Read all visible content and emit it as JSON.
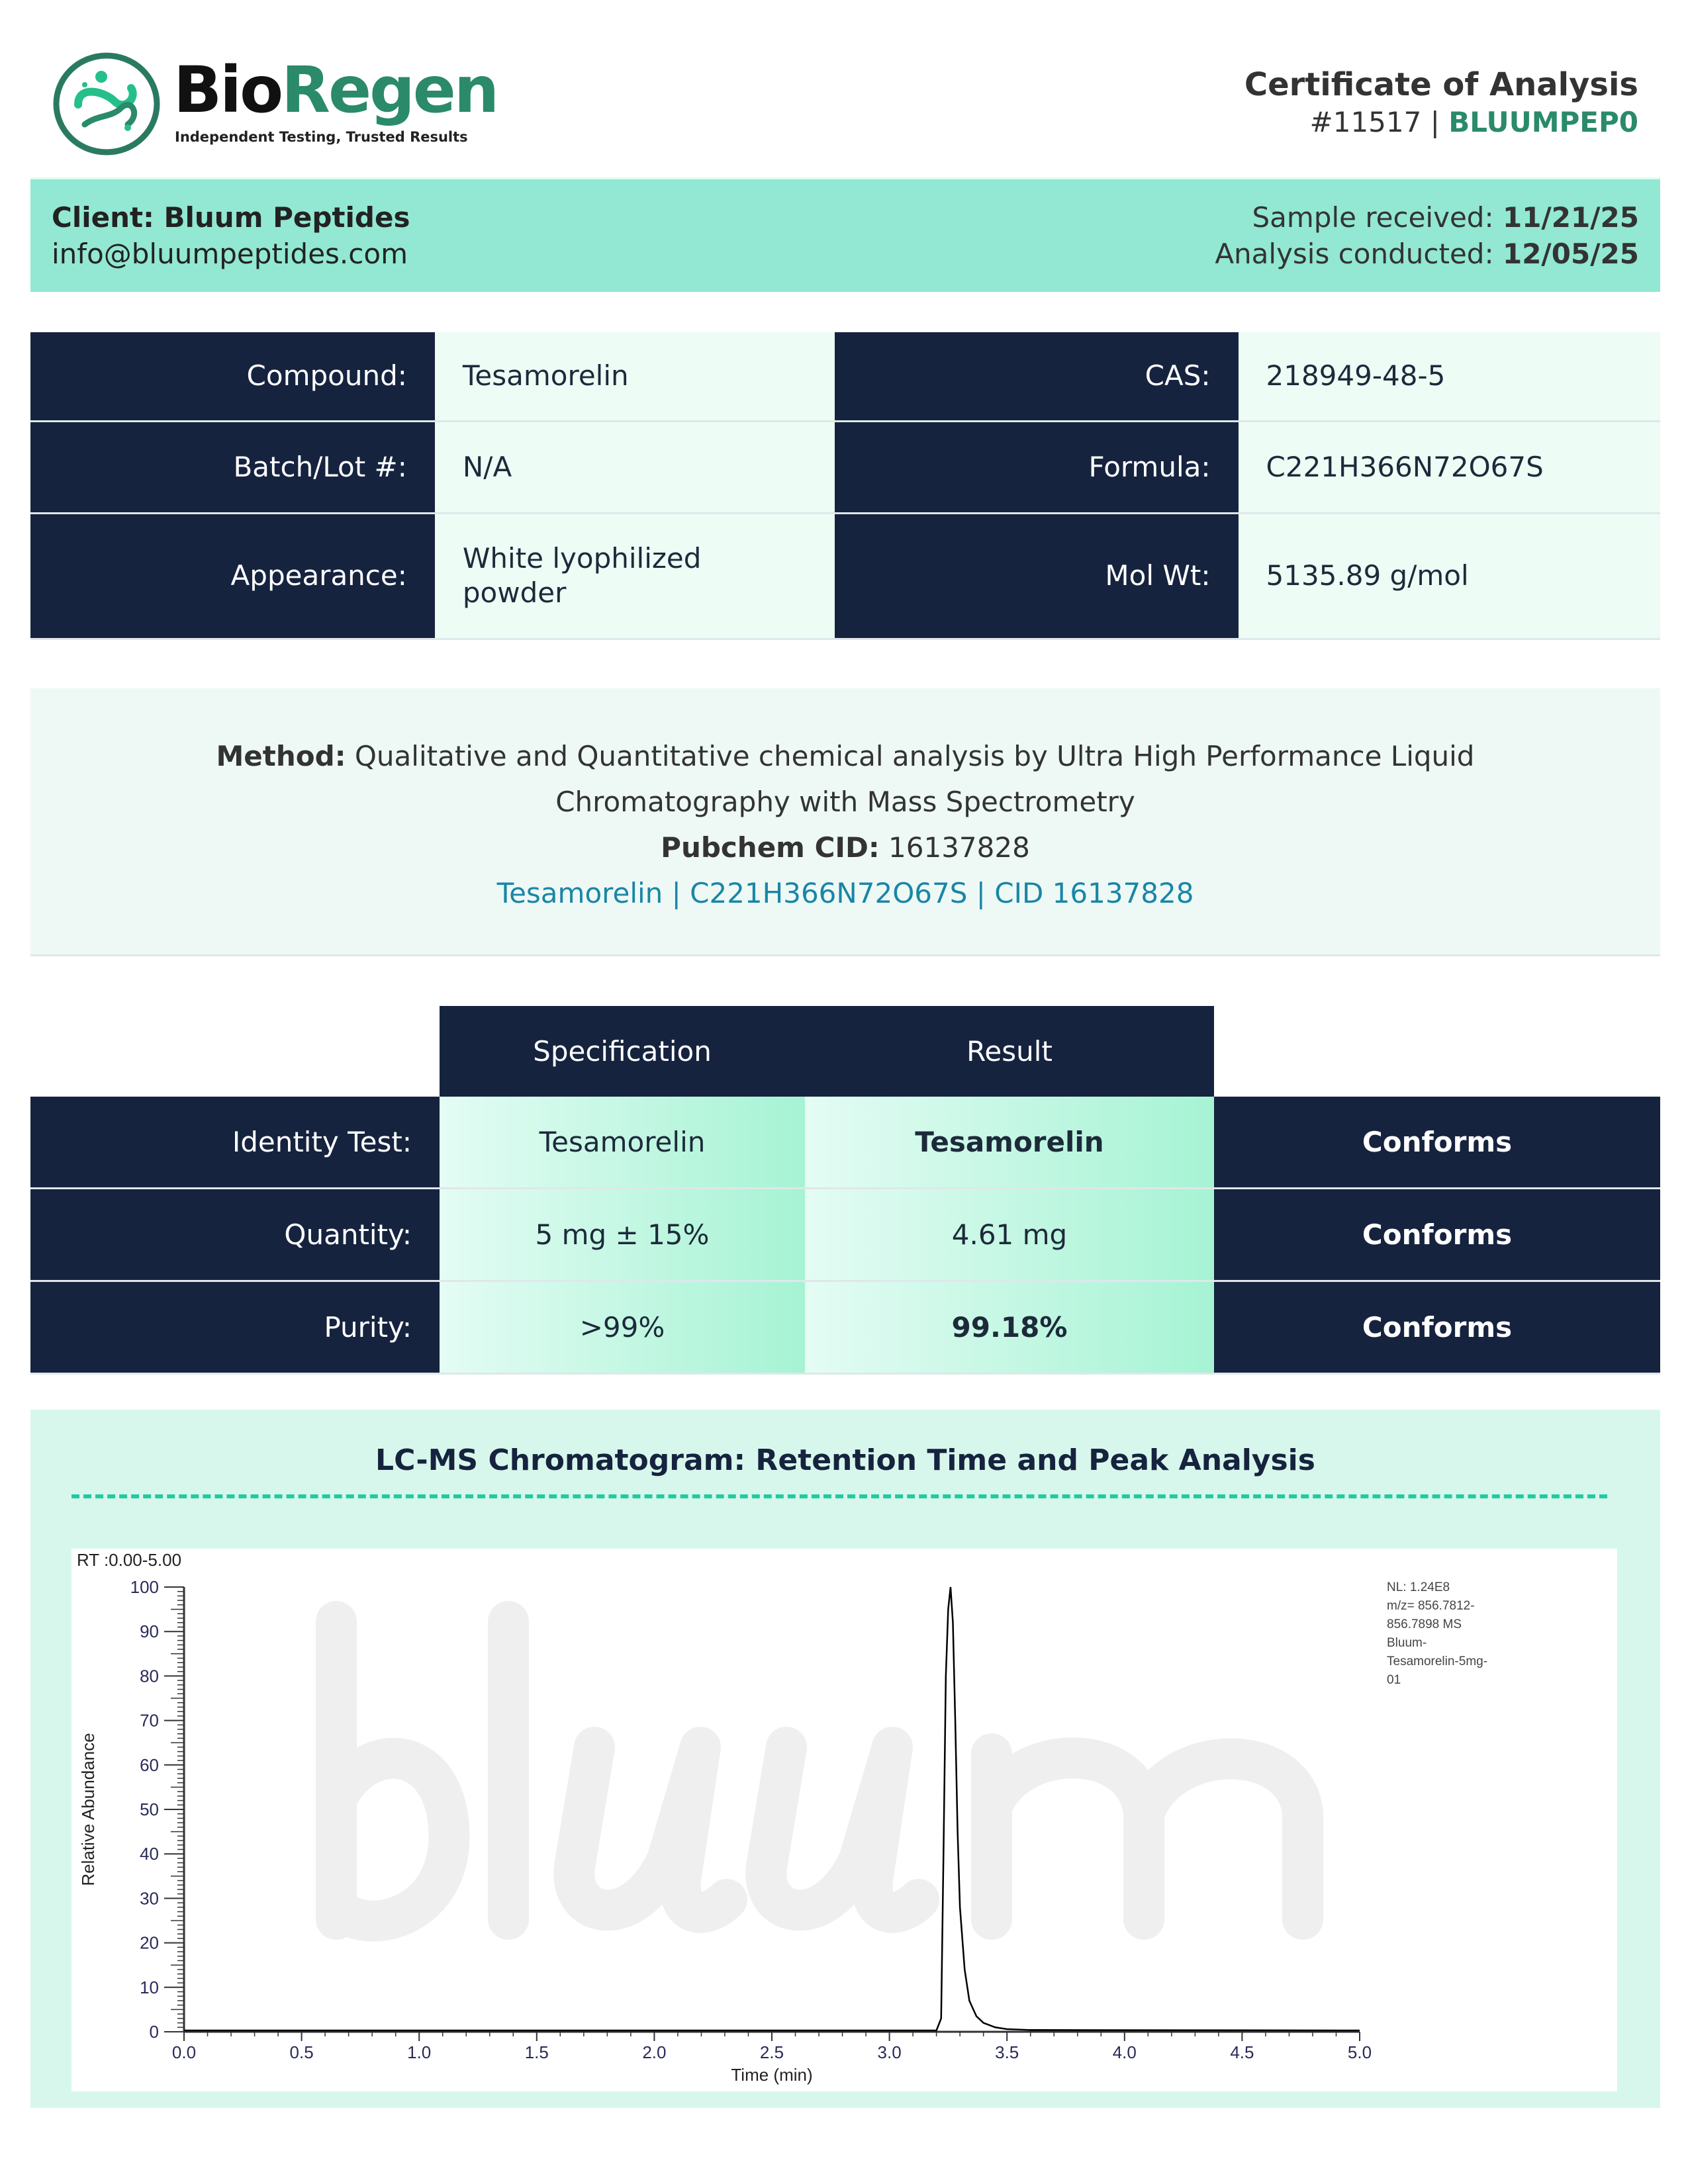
{
  "header": {
    "logo": {
      "brand_part1": "Bio",
      "brand_part2": "Regen",
      "tagline": "Independent Testing, Trusted Results"
    },
    "title": "Certificate of Analysis",
    "number": "#11517",
    "separator": "|",
    "code": "BLUUMPEP0"
  },
  "client": {
    "name_label": "Client:",
    "name": "Bluum Peptides",
    "email": "info@bluumpeptides.com",
    "received_label": "Sample received:",
    "received": "11/21/25",
    "conducted_label": "Analysis conducted:",
    "conducted": "12/05/25"
  },
  "info": {
    "rows": [
      {
        "k1": "Compound:",
        "v1": "Tesamorelin",
        "k2": "CAS:",
        "v2": "218949-48-5"
      },
      {
        "k1": "Batch/Lot #:",
        "v1": "N/A",
        "k2": "Formula:",
        "v2": "C221H366N72O67S"
      },
      {
        "k1": "Appearance:",
        "v1": "White lyophilized powder",
        "k2": "Mol Wt:",
        "v2": "5135.89 g/mol"
      }
    ]
  },
  "method": {
    "label": "Method:",
    "text": "Qualitative and Quantitative chemical analysis by Ultra High Performance Liquid Chromatography with Mass Spectrometry",
    "pubchem_label": "Pubchem CID:",
    "pubchem": "16137828",
    "link": "Tesamorelin | C221H366N72O67S | CID 16137828"
  },
  "results": {
    "headers": [
      "Specification",
      "Result"
    ],
    "rows": [
      {
        "test": "Identity Test:",
        "spec": "Tesamorelin",
        "result": "Tesamorelin",
        "status": "Conforms",
        "bold": true
      },
      {
        "test": "Quantity:",
        "spec": "5 mg ± 15%",
        "result": "4.61 mg",
        "status": "Conforms",
        "bold": false
      },
      {
        "test": "Purity:",
        "spec": ">99%",
        "result": "99.18%",
        "status": "Conforms",
        "bold": true
      }
    ]
  },
  "chromatogram": {
    "title": "LC-MS Chromatogram: Retention Time and Peak Analysis",
    "watermark": "bluum"
  },
  "chart_data": {
    "type": "line",
    "title": "RT :0.00-5.00",
    "xlabel": "Time (min)",
    "ylabel": "Relative Abundance",
    "xlim": [
      0,
      5
    ],
    "ylim": [
      0,
      100
    ],
    "xticks": [
      "0.0",
      "0.5",
      "1.0",
      "1.5",
      "2.0",
      "2.5",
      "3.0",
      "3.5",
      "4.0",
      "4.5",
      "5.0"
    ],
    "yticks": [
      "0",
      "10",
      "20",
      "30",
      "40",
      "50",
      "60",
      "70",
      "80",
      "90",
      "100"
    ],
    "annotation": [
      "NL: 1.24E8",
      "m/z= 856.7812-",
      "856.7898 MS",
      "Bluum-",
      "Tesamorelin-5mg-",
      "01"
    ],
    "series": [
      {
        "x": [
          0,
          3.2,
          3.22,
          3.23,
          3.24,
          3.25,
          3.26,
          3.27,
          3.28,
          3.29,
          3.3,
          3.32,
          3.34,
          3.37,
          3.4,
          3.45,
          3.5,
          3.6,
          5.0
        ],
        "y": [
          0.3,
          0.3,
          3,
          40,
          80,
          95,
          100,
          92,
          70,
          45,
          28,
          14,
          7,
          3.5,
          2,
          1,
          0.6,
          0.4,
          0.3
        ]
      }
    ],
    "grid": false,
    "line_color": "#000000"
  }
}
